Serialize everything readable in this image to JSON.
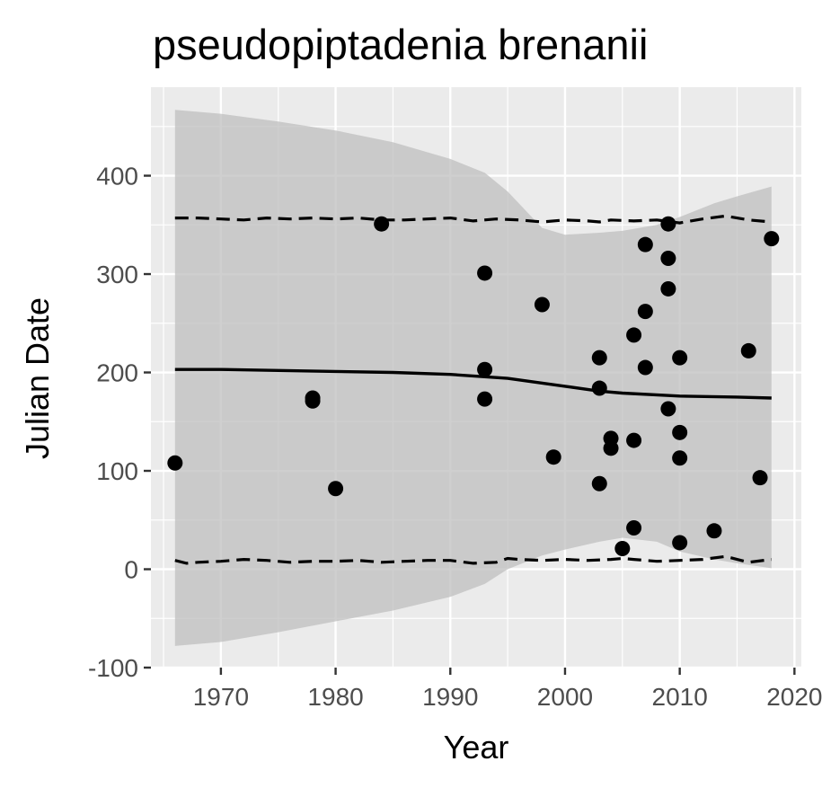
{
  "chart_data": {
    "type": "scatter",
    "title": "pseudopiptadenia brenanii",
    "xlabel": "Year",
    "ylabel": "Julian Date",
    "xlim": [
      1963.9,
      2020.6
    ],
    "ylim": [
      -100,
      490
    ],
    "x_ticks": [
      1970,
      1980,
      1990,
      2000,
      2010,
      2020
    ],
    "y_ticks": [
      -100,
      0,
      100,
      200,
      300,
      400
    ],
    "x_tick_labels": [
      "1970",
      "1980",
      "1990",
      "2000",
      "2010",
      "2020"
    ],
    "y_tick_labels": [
      "-100",
      "0",
      "100",
      "200",
      "300",
      "400"
    ],
    "grid": true,
    "points": [
      {
        "x": 1966,
        "y": 108
      },
      {
        "x": 1978,
        "y": 174
      },
      {
        "x": 1978,
        "y": 171
      },
      {
        "x": 1980,
        "y": 82
      },
      {
        "x": 1984,
        "y": 351
      },
      {
        "x": 1993,
        "y": 301
      },
      {
        "x": 1993,
        "y": 203
      },
      {
        "x": 1993,
        "y": 173
      },
      {
        "x": 1998,
        "y": 269
      },
      {
        "x": 1999,
        "y": 114
      },
      {
        "x": 2003,
        "y": 215
      },
      {
        "x": 2003,
        "y": 184
      },
      {
        "x": 2003,
        "y": 87
      },
      {
        "x": 2004,
        "y": 133
      },
      {
        "x": 2004,
        "y": 123
      },
      {
        "x": 2005,
        "y": 21
      },
      {
        "x": 2006,
        "y": 238
      },
      {
        "x": 2006,
        "y": 131
      },
      {
        "x": 2006,
        "y": 42
      },
      {
        "x": 2007,
        "y": 330
      },
      {
        "x": 2007,
        "y": 262
      },
      {
        "x": 2007,
        "y": 205
      },
      {
        "x": 2009,
        "y": 351
      },
      {
        "x": 2009,
        "y": 316
      },
      {
        "x": 2009,
        "y": 285
      },
      {
        "x": 2009,
        "y": 163
      },
      {
        "x": 2010,
        "y": 215
      },
      {
        "x": 2010,
        "y": 139
      },
      {
        "x": 2010,
        "y": 113
      },
      {
        "x": 2010,
        "y": 27
      },
      {
        "x": 2013,
        "y": 39
      },
      {
        "x": 2016,
        "y": 222
      },
      {
        "x": 2017,
        "y": 93
      },
      {
        "x": 2018,
        "y": 336
      }
    ],
    "trend_line": {
      "x": [
        1966,
        1970,
        1975,
        1980,
        1985,
        1990,
        1995,
        2000,
        2003,
        2005,
        2010,
        2015,
        2018
      ],
      "y": [
        203,
        203,
        202,
        201,
        200,
        198,
        194,
        186,
        181,
        179,
        176,
        175,
        174
      ]
    },
    "ribbon": {
      "x": [
        1966,
        1970,
        1975,
        1980,
        1985,
        1990,
        1993,
        1995,
        1998,
        2000,
        2003,
        2005,
        2008,
        2010,
        2013,
        2015,
        2018
      ],
      "upper": [
        467,
        463,
        455,
        446,
        434,
        417,
        403,
        384,
        347,
        340,
        342,
        344,
        350,
        358,
        372,
        379,
        389
      ],
      "lower": [
        -78,
        -74,
        -64,
        -53,
        -42,
        -28,
        -15,
        0,
        14,
        20,
        28,
        32,
        28,
        18,
        10,
        6,
        1
      ]
    },
    "quantile_upper": {
      "x": [
        1966,
        1968,
        1970,
        1972,
        1974,
        1976,
        1978,
        1980,
        1982,
        1984,
        1986,
        1988,
        1990,
        1992,
        1994,
        1996,
        1998,
        2000,
        2002,
        2003,
        2004,
        2006,
        2008,
        2010,
        2012,
        2014,
        2016,
        2018
      ],
      "y": [
        357,
        357,
        356,
        355,
        357,
        356,
        357,
        356,
        357,
        355,
        355,
        356,
        357,
        354,
        356,
        355,
        353,
        355,
        354,
        353,
        355,
        354,
        355,
        352,
        356,
        359,
        355,
        353
      ]
    },
    "quantile_lower": {
      "x": [
        1966,
        1967,
        1968,
        1970,
        1972,
        1974,
        1976,
        1978,
        1980,
        1982,
        1984,
        1986,
        1988,
        1990,
        1992,
        1994,
        1995,
        1996,
        1998,
        2000,
        2002,
        2004,
        2005,
        2006,
        2008,
        2010,
        2012,
        2014,
        2016,
        2018
      ],
      "y": [
        9,
        6,
        7,
        8,
        10,
        9,
        7,
        8,
        8,
        9,
        7,
        8,
        9,
        9,
        6,
        7,
        11,
        10,
        9,
        10,
        9,
        10,
        11,
        10,
        8,
        9,
        10,
        13,
        7,
        10
      ]
    }
  }
}
